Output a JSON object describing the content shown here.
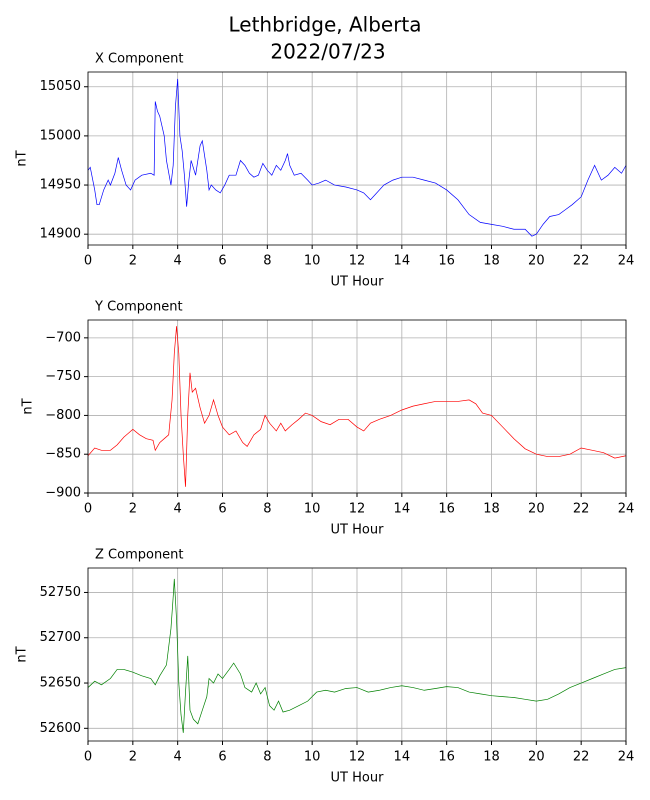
{
  "title": "Lethbridge, Alberta",
  "subtitle": "2022/07/23",
  "chart_data": [
    {
      "type": "line",
      "title": "X Component",
      "xlabel": "UT Hour",
      "ylabel": "nT",
      "color": "#0000ff",
      "grid": true,
      "xlim": [
        0,
        24
      ],
      "xticks": [
        0,
        2,
        4,
        6,
        8,
        10,
        12,
        14,
        16,
        18,
        20,
        22,
        24
      ],
      "ylim": [
        14889,
        15065
      ],
      "yticks": [
        14900,
        14950,
        15000,
        15050
      ],
      "x": [
        0,
        0.1,
        0.3,
        0.4,
        0.5,
        0.7,
        0.9,
        1.0,
        1.2,
        1.35,
        1.5,
        1.7,
        1.9,
        2.1,
        2.4,
        2.8,
        2.95,
        3.0,
        3.1,
        3.2,
        3.4,
        3.5,
        3.7,
        3.8,
        3.9,
        4.0,
        4.1,
        4.2,
        4.3,
        4.4,
        4.5,
        4.6,
        4.8,
        5.0,
        5.1,
        5.3,
        5.4,
        5.5,
        5.7,
        5.9,
        6.1,
        6.3,
        6.6,
        6.8,
        7.0,
        7.2,
        7.4,
        7.6,
        7.8,
        8.0,
        8.2,
        8.4,
        8.6,
        8.8,
        8.9,
        9.0,
        9.2,
        9.5,
        9.8,
        10.0,
        10.3,
        10.6,
        11,
        11.5,
        12,
        12.3,
        12.6,
        12.8,
        13.2,
        13.6,
        14,
        14.5,
        15,
        15.5,
        16,
        16.5,
        17,
        17.5,
        18,
        18.5,
        19,
        19.5,
        19.8,
        20,
        20.3,
        20.6,
        21,
        21.3,
        21.6,
        22,
        22.3,
        22.6,
        22.9,
        23.2,
        23.5,
        23.8,
        24
      ],
      "values": [
        14965,
        14968,
        14945,
        14930,
        14930,
        14945,
        14955,
        14950,
        14962,
        14978,
        14965,
        14950,
        14945,
        14955,
        14960,
        14962,
        14960,
        15035,
        15025,
        15020,
        15000,
        14975,
        14950,
        14970,
        15030,
        15058,
        15000,
        14985,
        14960,
        14928,
        14955,
        14975,
        14960,
        14990,
        14995,
        14965,
        14945,
        14950,
        14945,
        14942,
        14950,
        14960,
        14960,
        14975,
        14970,
        14962,
        14958,
        14960,
        14972,
        14965,
        14960,
        14970,
        14965,
        14975,
        14982,
        14970,
        14960,
        14962,
        14955,
        14950,
        14952,
        14955,
        14950,
        14948,
        14945,
        14942,
        14935,
        14940,
        14950,
        14955,
        14958,
        14958,
        14955,
        14952,
        14945,
        14935,
        14920,
        14912,
        14910,
        14908,
        14905,
        14905,
        14898,
        14900,
        14910,
        14918,
        14920,
        14925,
        14930,
        14938,
        14955,
        14970,
        14955,
        14960,
        14968,
        14962,
        14970
      ]
    },
    {
      "type": "line",
      "title": "Y Component",
      "xlabel": "UT Hour",
      "ylabel": "nT",
      "color": "#ff0000",
      "grid": true,
      "xlim": [
        0,
        24
      ],
      "xticks": [
        0,
        2,
        4,
        6,
        8,
        10,
        12,
        14,
        16,
        18,
        20,
        22,
        24
      ],
      "ylim": [
        -900,
        -677
      ],
      "yticks": [
        {
          "value": -900,
          "label": "−900"
        },
        {
          "value": -850,
          "label": "−850"
        },
        {
          "value": -800,
          "label": "−800"
        },
        {
          "value": -750,
          "label": "−750"
        },
        {
          "value": -700,
          "label": "−700"
        }
      ],
      "x": [
        0,
        0.3,
        0.6,
        1.0,
        1.3,
        1.6,
        2.0,
        2.3,
        2.6,
        2.9,
        3.0,
        3.2,
        3.4,
        3.6,
        3.75,
        3.85,
        3.95,
        4.05,
        4.15,
        4.25,
        4.35,
        4.45,
        4.55,
        4.65,
        4.8,
        5.0,
        5.2,
        5.4,
        5.6,
        5.8,
        6.0,
        6.3,
        6.6,
        6.9,
        7.1,
        7.4,
        7.7,
        7.9,
        8.1,
        8.4,
        8.6,
        8.8,
        9.1,
        9.4,
        9.7,
        10,
        10.4,
        10.8,
        11.2,
        11.6,
        12,
        12.3,
        12.6,
        13,
        13.5,
        14,
        14.5,
        15,
        15.5,
        16,
        16.5,
        17,
        17.3,
        17.6,
        18,
        18.5,
        19,
        19.5,
        20,
        20.5,
        21,
        21.5,
        22,
        22.5,
        23,
        23.5,
        24
      ],
      "values": [
        -852,
        -842,
        -845,
        -845,
        -838,
        -828,
        -818,
        -825,
        -830,
        -832,
        -845,
        -835,
        -830,
        -825,
        -780,
        -720,
        -685,
        -720,
        -800,
        -850,
        -892,
        -800,
        -745,
        -770,
        -765,
        -790,
        -810,
        -800,
        -780,
        -800,
        -815,
        -825,
        -820,
        -835,
        -840,
        -825,
        -818,
        -800,
        -810,
        -820,
        -810,
        -820,
        -812,
        -805,
        -797,
        -800,
        -808,
        -812,
        -805,
        -805,
        -815,
        -820,
        -810,
        -805,
        -800,
        -793,
        -788,
        -785,
        -782,
        -782,
        -782,
        -780,
        -785,
        -797,
        -800,
        -815,
        -830,
        -843,
        -850,
        -853,
        -853,
        -850,
        -842,
        -845,
        -848,
        -855,
        -852
      ]
    },
    {
      "type": "line",
      "title": "Z Component",
      "xlabel": "UT Hour",
      "ylabel": "nT",
      "color": "#008000",
      "grid": true,
      "xlim": [
        0,
        24
      ],
      "xticks": [
        0,
        2,
        4,
        6,
        8,
        10,
        12,
        14,
        16,
        18,
        20,
        22,
        24
      ],
      "ylim": [
        52586,
        52777
      ],
      "yticks": [
        52600,
        52650,
        52700,
        52750
      ],
      "x": [
        0,
        0.3,
        0.6,
        1.0,
        1.3,
        1.6,
        2,
        2.4,
        2.8,
        3.0,
        3.2,
        3.5,
        3.7,
        3.8,
        3.85,
        3.95,
        4.05,
        4.15,
        4.25,
        4.35,
        4.45,
        4.55,
        4.7,
        4.9,
        5.1,
        5.3,
        5.4,
        5.6,
        5.8,
        6.0,
        6.3,
        6.5,
        6.8,
        7.0,
        7.3,
        7.5,
        7.7,
        7.9,
        8.1,
        8.3,
        8.5,
        8.7,
        9.0,
        9.4,
        9.8,
        10.2,
        10.6,
        11,
        11.5,
        12,
        12.5,
        13,
        13.5,
        14,
        14.5,
        15,
        15.5,
        16,
        16.5,
        17,
        17.5,
        18,
        18.5,
        19,
        19.5,
        20,
        20.5,
        21,
        21.5,
        22,
        22.5,
        23,
        23.5,
        24
      ],
      "values": [
        52645,
        52652,
        52648,
        52655,
        52665,
        52665,
        52662,
        52658,
        52655,
        52648,
        52658,
        52670,
        52710,
        52745,
        52765,
        52720,
        52650,
        52615,
        52595,
        52640,
        52680,
        52620,
        52610,
        52605,
        52620,
        52635,
        52655,
        52650,
        52660,
        52655,
        52665,
        52672,
        52660,
        52645,
        52640,
        52650,
        52638,
        52645,
        52625,
        52620,
        52630,
        52618,
        52620,
        52625,
        52630,
        52640,
        52642,
        52640,
        52644,
        52645,
        52640,
        52642,
        52645,
        52647,
        52645,
        52642,
        52644,
        52646,
        52645,
        52640,
        52638,
        52636,
        52635,
        52634,
        52632,
        52630,
        52632,
        52638,
        52645,
        52650,
        52655,
        52660,
        52665,
        52667
      ]
    }
  ]
}
